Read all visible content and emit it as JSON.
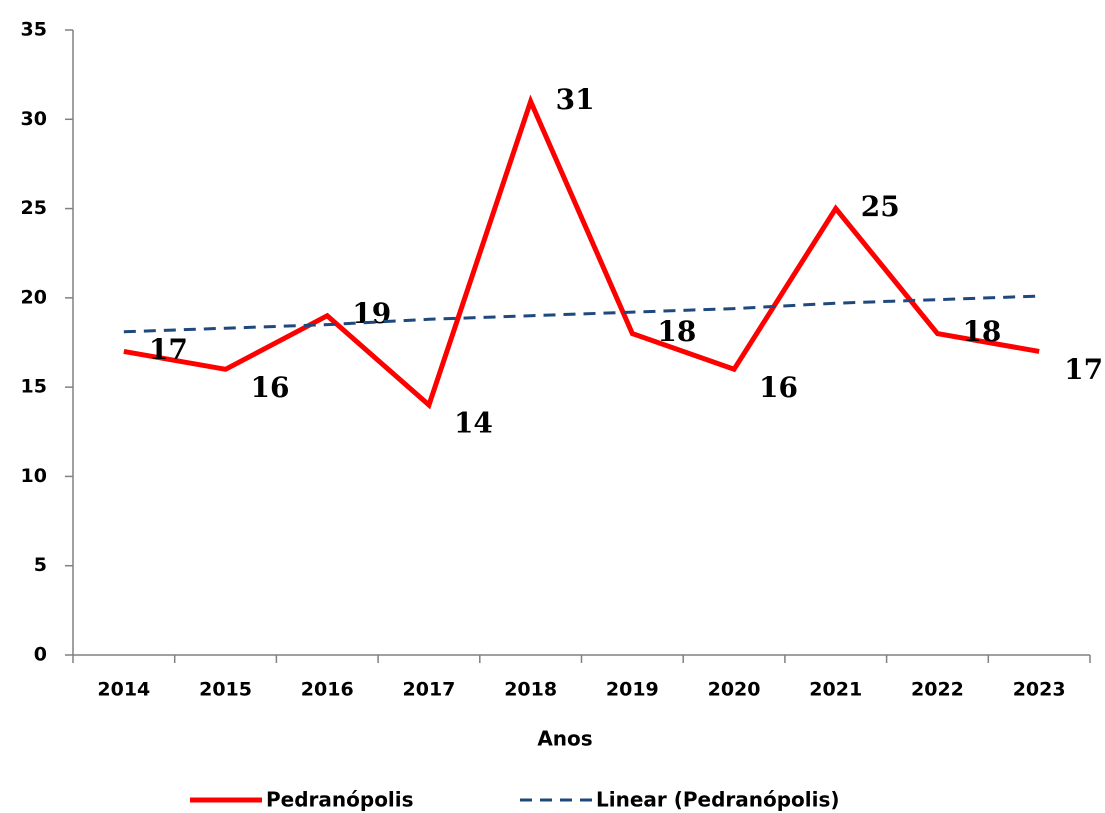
{
  "chart_data": {
    "type": "line",
    "x_label": "Anos",
    "categories": [
      "2014",
      "2015",
      "2016",
      "2017",
      "2018",
      "2019",
      "2020",
      "2021",
      "2022",
      "2023"
    ],
    "series": [
      {
        "name": "Pedranópolis",
        "color": "#ff0000",
        "values": [
          17,
          16,
          19,
          14,
          31,
          18,
          16,
          25,
          18,
          17
        ]
      },
      {
        "name": "Linear (Pedranópolis)",
        "color": "#1f497d",
        "dashed": true,
        "values": [
          18.1,
          18.3,
          18.5,
          18.8,
          19.0,
          19.2,
          19.4,
          19.7,
          19.9,
          20.1
        ]
      }
    ],
    "ylim": [
      0,
      35
    ],
    "yticks": [
      0,
      5,
      10,
      15,
      20,
      25,
      30,
      35
    ],
    "grid": false,
    "legend": "bottom"
  }
}
